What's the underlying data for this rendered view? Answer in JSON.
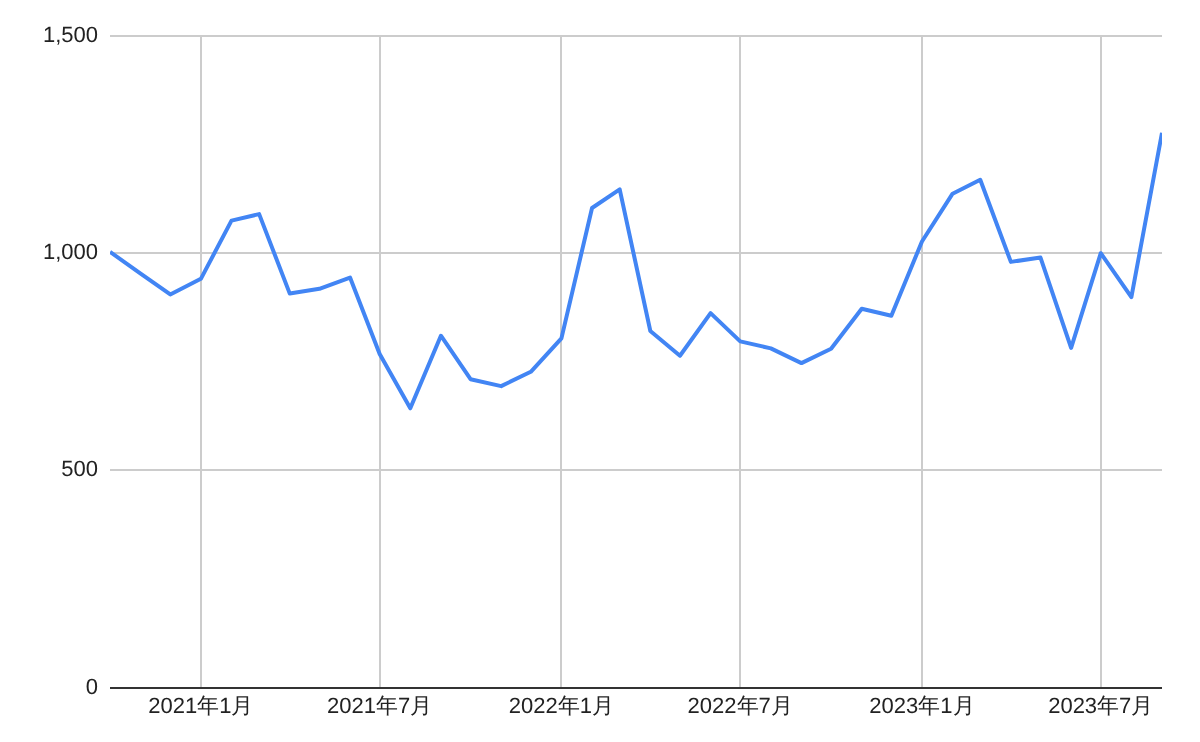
{
  "chart_data": {
    "type": "line",
    "x": [
      "2020-10",
      "2020-11",
      "2020-12",
      "2021-01",
      "2021-02",
      "2021-03",
      "2021-04",
      "2021-05",
      "2021-06",
      "2021-07",
      "2021-08",
      "2021-09",
      "2021-10",
      "2021-11",
      "2021-12",
      "2022-01",
      "2022-02",
      "2022-03",
      "2022-04",
      "2022-05",
      "2022-06",
      "2022-07",
      "2022-08",
      "2022-09",
      "2022-10",
      "2022-11",
      "2022-12",
      "2023-01",
      "2023-02",
      "2023-03",
      "2023-04",
      "2023-05",
      "2023-06",
      "2023-07",
      "2023-08",
      "2023-09"
    ],
    "series": [
      {
        "color": "#4285f4",
        "values": [
          1003,
          953,
          905,
          941,
          1075,
          1090,
          907,
          918,
          944,
          768,
          643,
          810,
          710,
          694,
          727,
          804,
          1104,
          1147,
          821,
          764,
          862,
          797,
          781,
          747,
          780,
          872,
          856,
          1027,
          1137,
          1169,
          980,
          990,
          782,
          1000,
          899,
          1277
        ]
      }
    ],
    "xlim": [
      "2020-10",
      "2023-09"
    ],
    "xticks": [
      {
        "value": "2021-01",
        "label": "2021年1月"
      },
      {
        "value": "2021-07",
        "label": "2021年7月"
      },
      {
        "value": "2022-01",
        "label": "2022年1月"
      },
      {
        "value": "2022-07",
        "label": "2022年7月"
      },
      {
        "value": "2023-01",
        "label": "2023年1月"
      },
      {
        "value": "2023-07",
        "label": "2023年7月"
      }
    ],
    "ylim": [
      0,
      1500
    ],
    "yticks": [
      0,
      500,
      {
        "value": 1000,
        "label": "1,000"
      },
      {
        "value": 1500,
        "label": "1,500"
      }
    ],
    "grid": true,
    "legend": false,
    "marker": "none",
    "line_style": "solid"
  }
}
